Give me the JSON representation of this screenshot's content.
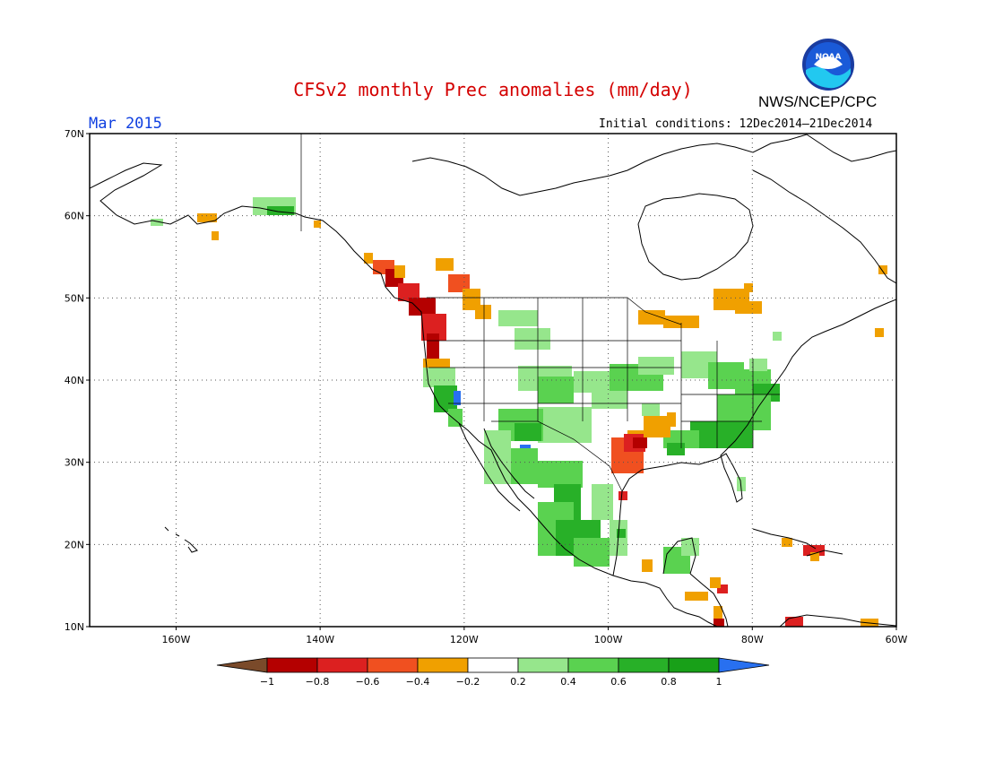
{
  "header": {
    "title": "CFSv2 monthly Prec anomalies (mm/day)",
    "agency": "NWS/NCEP/CPC",
    "month": "Mar 2015",
    "initial_conditions": "Initial conditions: 12Dec2014–21Dec2014",
    "logo_icon": "noaa-logo-icon"
  },
  "map": {
    "lon_range": [
      -172,
      -60
    ],
    "lat_range": [
      10,
      70
    ],
    "lat_ticks": [
      "70N",
      "60N",
      "50N",
      "40N",
      "30N",
      "20N",
      "10N"
    ],
    "lon_ticks": [
      "160W",
      "140W",
      "120W",
      "100W",
      "80W",
      "60W"
    ],
    "grid": "dotted"
  },
  "colorbar": {
    "labels": [
      "−1",
      "−0.8",
      "−0.6",
      "−0.4",
      "−0.2",
      "0.2",
      "0.4",
      "0.6",
      "0.8",
      "1"
    ],
    "colors": [
      "#7a4a2a",
      "#b40000",
      "#dc2020",
      "#f05020",
      "#f0a000",
      "#ffffff",
      "#96e68c",
      "#5ad250",
      "#28b028",
      "#18a018",
      "#2870f0"
    ]
  },
  "anomalies": {
    "colors": {
      "dry2": "#b40000",
      "dry1": "#dc2020",
      "dryl": "#f05020",
      "dry0": "#f0a000",
      "wet1": "#96e68c",
      "wet2": "#5ad250",
      "wet3": "#28b028",
      "wet4": "#2870f0"
    }
  }
}
